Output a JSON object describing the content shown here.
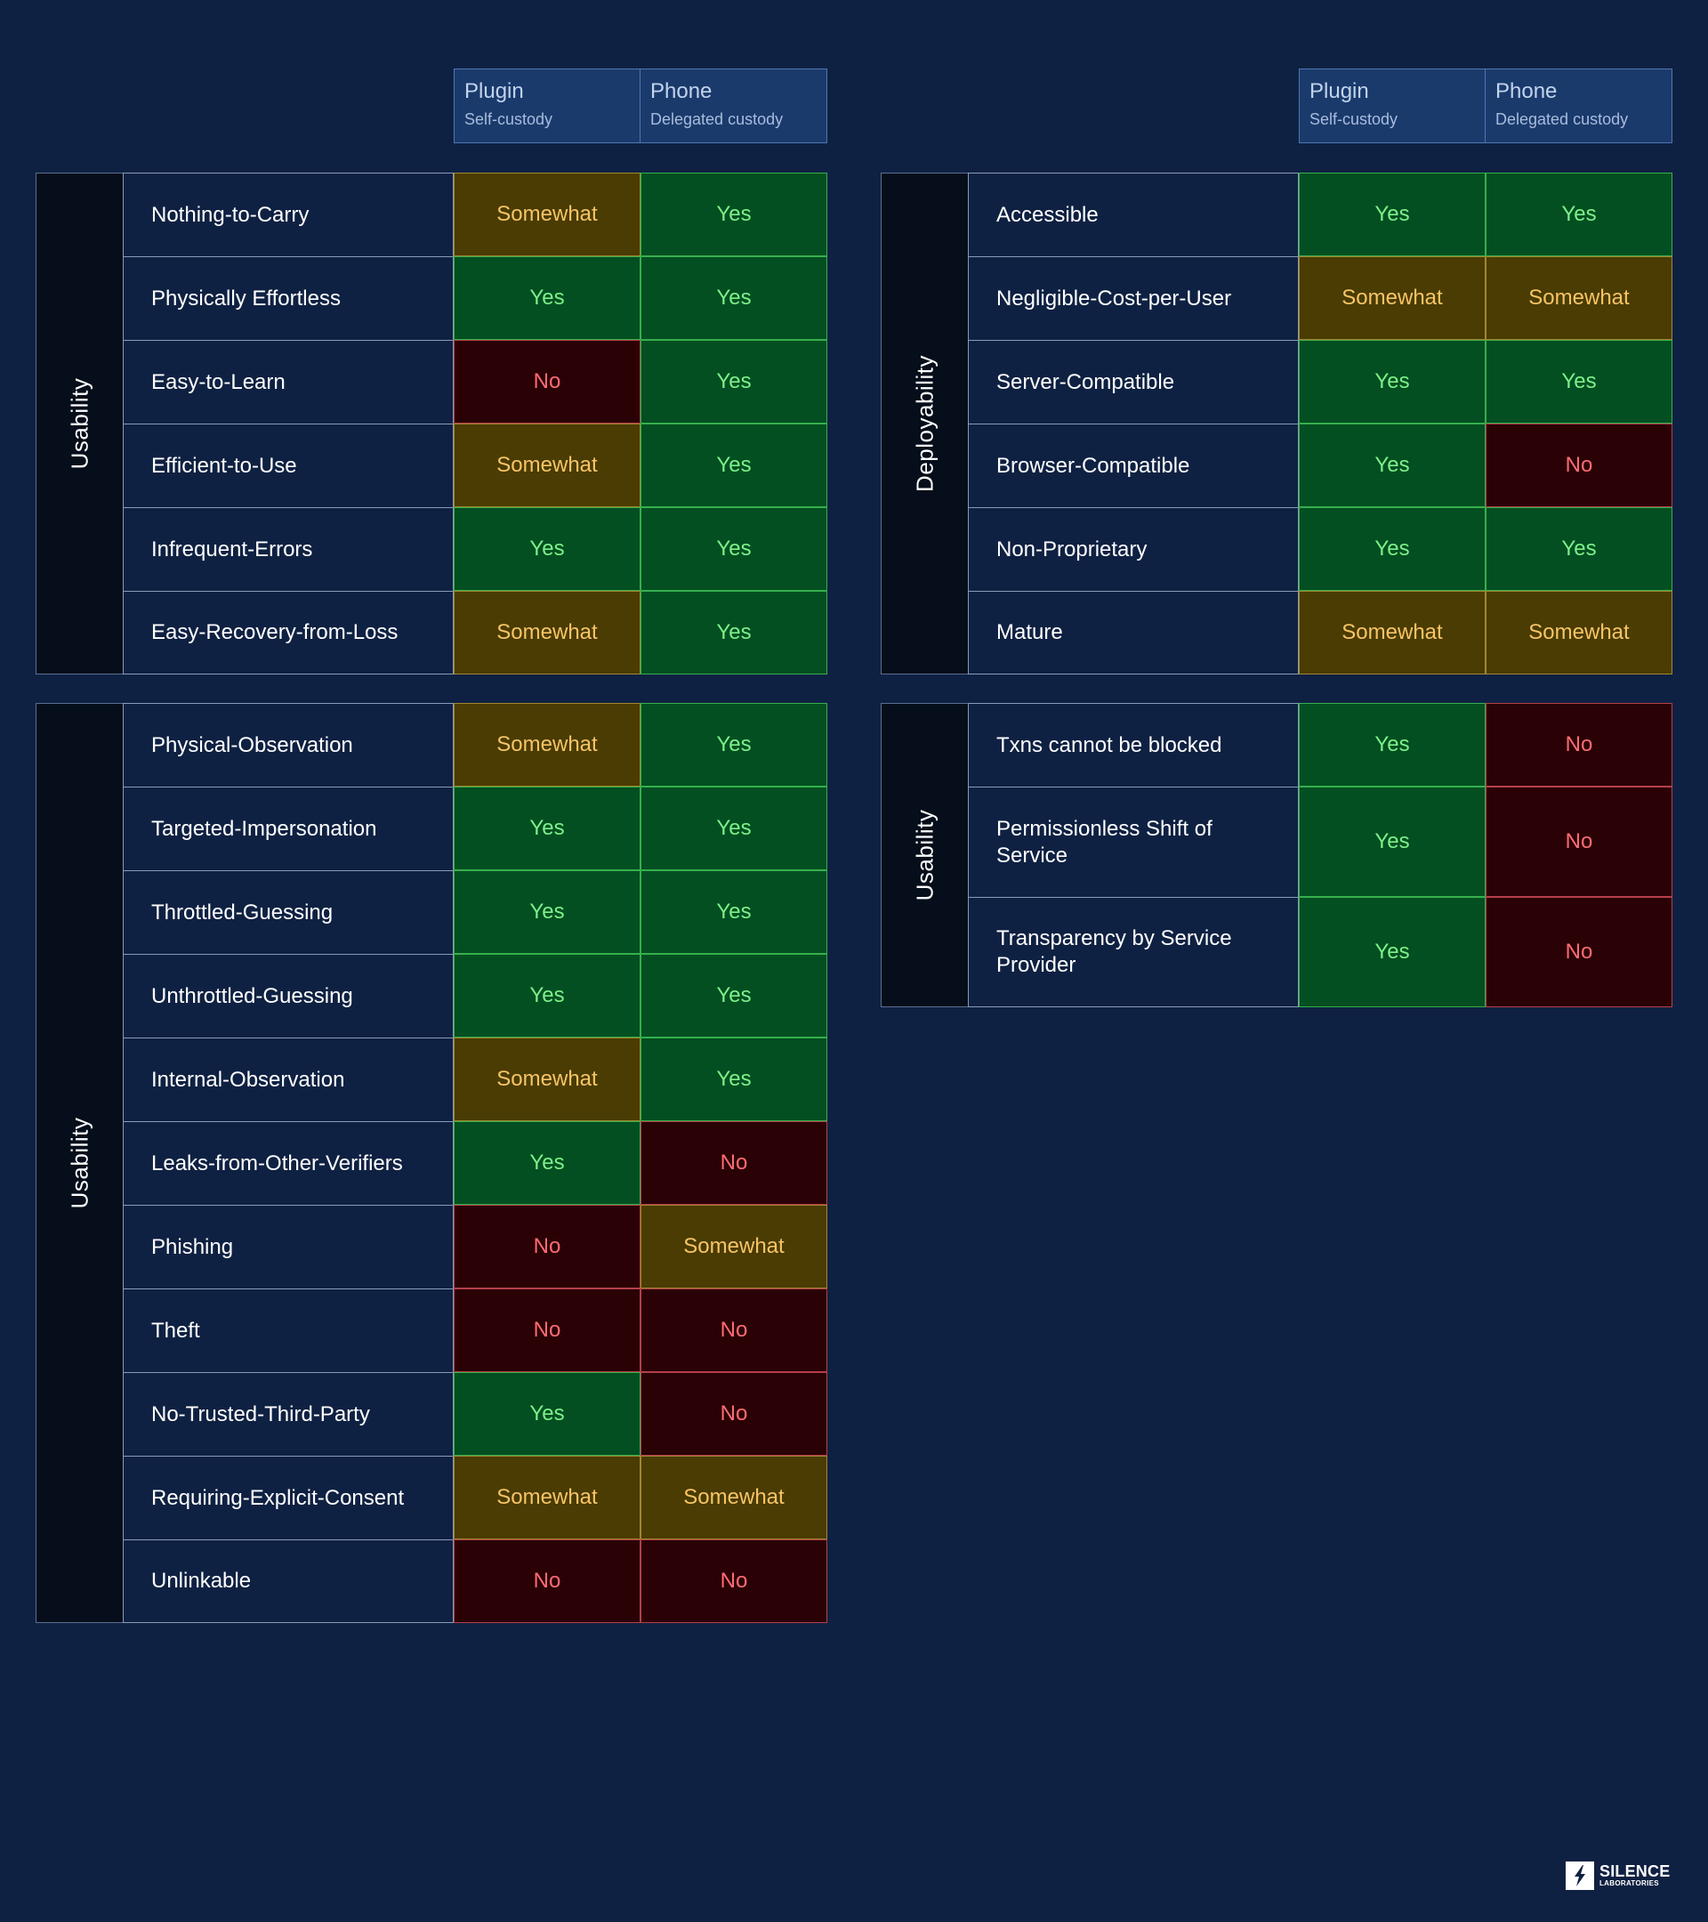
{
  "columns": [
    {
      "title": "Plugin",
      "subtitle": "Self-custody"
    },
    {
      "title": "Phone",
      "subtitle": "Delegated custody"
    }
  ],
  "sections": [
    {
      "category": "Usability",
      "rows": [
        {
          "feature": "Nothing-to-Carry",
          "plugin": "Somewhat",
          "phone": "Yes"
        },
        {
          "feature": "Physically Effortless",
          "plugin": "Yes",
          "phone": "Yes"
        },
        {
          "feature": "Easy-to-Learn",
          "plugin": "No",
          "phone": "Yes"
        },
        {
          "feature": "Efficient-to-Use",
          "plugin": "Somewhat",
          "phone": "Yes"
        },
        {
          "feature": "Infrequent-Errors",
          "plugin": "Yes",
          "phone": "Yes"
        },
        {
          "feature": "Easy-Recovery-from-Loss",
          "plugin": "Somewhat",
          "phone": "Yes"
        }
      ]
    },
    {
      "category": "Usability",
      "rows": [
        {
          "feature": "Physical-Observation",
          "plugin": "Somewhat",
          "phone": "Yes"
        },
        {
          "feature": "Targeted-Impersonation",
          "plugin": "Yes",
          "phone": "Yes"
        },
        {
          "feature": "Throttled-Guessing",
          "plugin": "Yes",
          "phone": "Yes"
        },
        {
          "feature": "Unthrottled-Guessing",
          "plugin": "Yes",
          "phone": "Yes"
        },
        {
          "feature": "Internal-Observation",
          "plugin": "Somewhat",
          "phone": "Yes"
        },
        {
          "feature": "Leaks-from-Other-Verifiers",
          "plugin": "Yes",
          "phone": "No"
        },
        {
          "feature": "Phishing",
          "plugin": "No",
          "phone": "Somewhat"
        },
        {
          "feature": "Theft",
          "plugin": "No",
          "phone": "No"
        },
        {
          "feature": "No-Trusted-Third-Party",
          "plugin": "Yes",
          "phone": "No"
        },
        {
          "feature": "Requiring-Explicit-Consent",
          "plugin": "Somewhat",
          "phone": "Somewhat"
        },
        {
          "feature": "Unlinkable",
          "plugin": "No",
          "phone": "No"
        }
      ]
    },
    {
      "category": "Deployability",
      "rows": [
        {
          "feature": "Accessible",
          "plugin": "Yes",
          "phone": "Yes"
        },
        {
          "feature": "Negligible-Cost-per-User",
          "plugin": "Somewhat",
          "phone": "Somewhat"
        },
        {
          "feature": "Server-Compatible",
          "plugin": "Yes",
          "phone": "Yes"
        },
        {
          "feature": "Browser-Compatible",
          "plugin": "Yes",
          "phone": "No"
        },
        {
          "feature": "Non-Proprietary",
          "plugin": "Yes",
          "phone": "Yes"
        },
        {
          "feature": "Mature",
          "plugin": "Somewhat",
          "phone": "Somewhat"
        }
      ]
    },
    {
      "category": "Usability",
      "rows": [
        {
          "feature": "Txns cannot be blocked",
          "plugin": "Yes",
          "phone": "No"
        },
        {
          "feature": "Permissionless Shift of Service",
          "plugin": "Yes",
          "phone": "No"
        },
        {
          "feature": "Transparency by Service Provider",
          "plugin": "Yes",
          "phone": "No"
        }
      ]
    }
  ],
  "logo": {
    "line1": "SILENCE",
    "line2": "LABORATORIES",
    "icon": "silence-logo-icon"
  },
  "colors": {
    "background": "#0f2142",
    "yes_bg": "#034f21",
    "yes_text": "#7df08a",
    "somewhat_bg": "#4a3c02",
    "somewhat_text": "#f8c467",
    "no_bg": "#2a0206",
    "no_text": "#ff6b73",
    "header_bg": "#1a3a6c"
  }
}
